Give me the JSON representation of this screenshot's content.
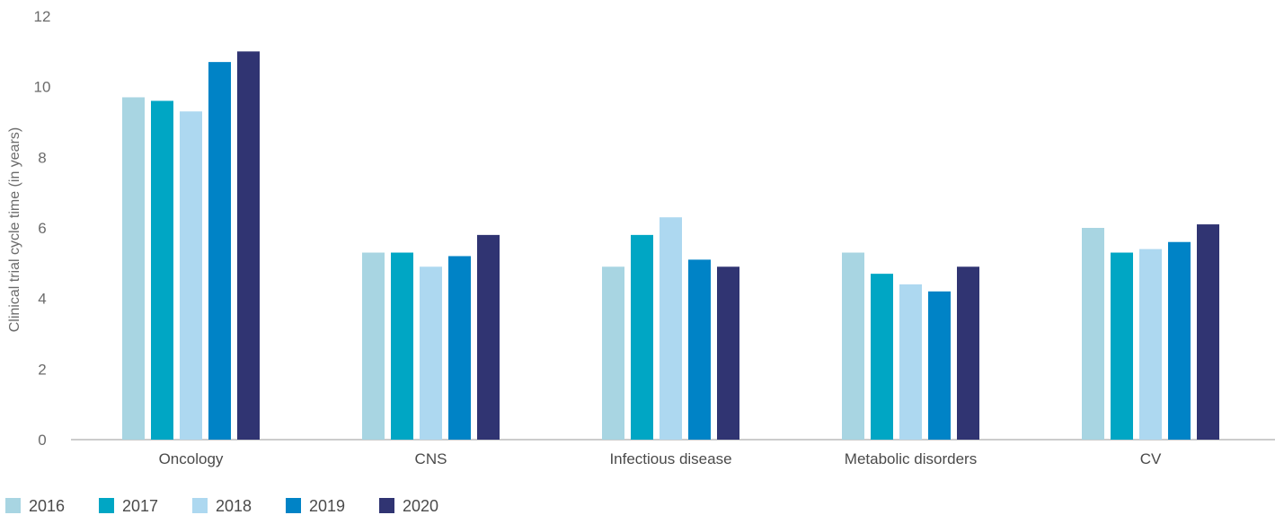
{
  "chart_data": {
    "type": "bar",
    "title": "",
    "xlabel": "",
    "ylabel": "Clinical trial cycle time (in years)",
    "ylim": [
      0,
      12
    ],
    "yticks": [
      0,
      2,
      4,
      6,
      8,
      10,
      12
    ],
    "grid": false,
    "legend_position": "bottom-left",
    "categories": [
      "Oncology",
      "CNS",
      "Infectious disease",
      "Metabolic disorders",
      "CV"
    ],
    "series": [
      {
        "name": "2016",
        "color": "#A8D5E2",
        "values": [
          9.7,
          5.3,
          4.9,
          5.3,
          6.0
        ]
      },
      {
        "name": "2017",
        "color": "#00A6C4",
        "values": [
          9.6,
          5.3,
          5.8,
          4.7,
          5.3
        ]
      },
      {
        "name": "2018",
        "color": "#ADD8F0",
        "values": [
          9.3,
          4.9,
          6.3,
          4.4,
          5.4
        ]
      },
      {
        "name": "2019",
        "color": "#0083C6",
        "values": [
          10.7,
          5.2,
          5.1,
          4.2,
          5.6
        ]
      },
      {
        "name": "2020",
        "color": "#303472",
        "values": [
          11.0,
          5.8,
          4.9,
          4.9,
          6.1
        ]
      }
    ]
  }
}
